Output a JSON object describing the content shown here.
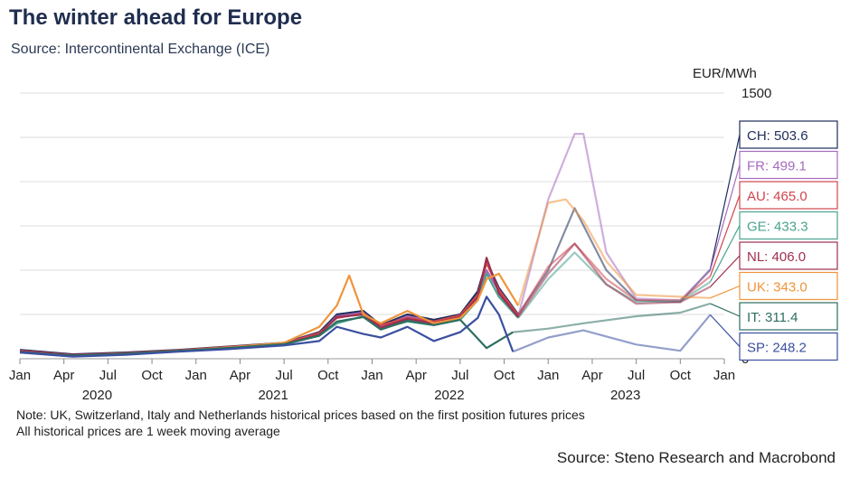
{
  "chart_data": {
    "type": "line",
    "title": "The winter ahead for Europe",
    "subtitle": "Source: Intercontinental Exchange (ICE)",
    "ylabel": "EUR/MWh",
    "ylim": [
      0,
      1500
    ],
    "y_ticks_shown": [
      0,
      1500
    ],
    "x_range": [
      2020.0,
      2024.0
    ],
    "x_month_ticks": [
      "Jan",
      "Apr",
      "Jul",
      "Oct",
      "Jan",
      "Apr",
      "Jul",
      "Oct",
      "Jan",
      "Apr",
      "Jul",
      "Oct",
      "Jan",
      "Apr",
      "Jul",
      "Oct",
      "Jan"
    ],
    "x_year_labels": [
      "2020",
      "2021",
      "2022",
      "2023"
    ],
    "notes": [
      "Note: UK, Switzerland, Italy and Netherlands historical prices based on the first position futures prices",
      "All historical prices are 1 week moving average"
    ],
    "credit": "Source: Steno Research and Macrobond",
    "series": [
      {
        "code": "CH",
        "value_label": "503.6",
        "color": "#1f2d5a",
        "history": [
          [
            2020.0,
            50
          ],
          [
            2020.3,
            25
          ],
          [
            2020.6,
            35
          ],
          [
            2020.9,
            50
          ],
          [
            2021.2,
            70
          ],
          [
            2021.5,
            90
          ],
          [
            2021.7,
            150
          ],
          [
            2021.8,
            250
          ],
          [
            2021.95,
            270
          ],
          [
            2022.05,
            190
          ],
          [
            2022.2,
            250
          ],
          [
            2022.35,
            220
          ],
          [
            2022.5,
            250
          ],
          [
            2022.6,
            380
          ],
          [
            2022.65,
            550
          ],
          [
            2022.72,
            400
          ],
          [
            2022.83,
            250
          ]
        ],
        "forecast": [
          [
            2022.83,
            250
          ],
          [
            2023.0,
            500
          ],
          [
            2023.15,
            850
          ],
          [
            2023.33,
            500
          ],
          [
            2023.5,
            330
          ],
          [
            2023.75,
            320
          ],
          [
            2023.92,
            503.6
          ]
        ]
      },
      {
        "code": "FR",
        "value_label": "499.1",
        "color": "#a56bc0",
        "history": [
          [
            2020.0,
            45
          ],
          [
            2020.3,
            20
          ],
          [
            2020.6,
            30
          ],
          [
            2020.9,
            45
          ],
          [
            2021.2,
            65
          ],
          [
            2021.5,
            85
          ],
          [
            2021.7,
            140
          ],
          [
            2021.8,
            240
          ],
          [
            2021.95,
            260
          ],
          [
            2022.05,
            180
          ],
          [
            2022.2,
            240
          ],
          [
            2022.35,
            210
          ],
          [
            2022.5,
            240
          ],
          [
            2022.6,
            350
          ],
          [
            2022.65,
            500
          ],
          [
            2022.72,
            380
          ],
          [
            2022.83,
            240
          ]
        ],
        "forecast": [
          [
            2022.83,
            240
          ],
          [
            2023.0,
            900
          ],
          [
            2023.15,
            1270
          ],
          [
            2023.2,
            1270
          ],
          [
            2023.33,
            600
          ],
          [
            2023.5,
            340
          ],
          [
            2023.75,
            330
          ],
          [
            2023.92,
            499.1
          ]
        ]
      },
      {
        "code": "AU",
        "value_label": "465.0",
        "color": "#d0464e",
        "history": [
          [
            2020.0,
            45
          ],
          [
            2020.3,
            22
          ],
          [
            2020.6,
            32
          ],
          [
            2020.9,
            48
          ],
          [
            2021.2,
            68
          ],
          [
            2021.5,
            88
          ],
          [
            2021.7,
            145
          ],
          [
            2021.8,
            230
          ],
          [
            2021.95,
            255
          ],
          [
            2022.05,
            190
          ],
          [
            2022.2,
            230
          ],
          [
            2022.35,
            210
          ],
          [
            2022.5,
            245
          ],
          [
            2022.6,
            360
          ],
          [
            2022.65,
            540
          ],
          [
            2022.72,
            390
          ],
          [
            2022.83,
            245
          ]
        ],
        "forecast": [
          [
            2022.83,
            245
          ],
          [
            2023.0,
            520
          ],
          [
            2023.15,
            650
          ],
          [
            2023.33,
            450
          ],
          [
            2023.5,
            330
          ],
          [
            2023.75,
            330
          ],
          [
            2023.92,
            465
          ]
        ]
      },
      {
        "code": "GE",
        "value_label": "433.3",
        "color": "#4aa38e",
        "history": [
          [
            2020.0,
            40
          ],
          [
            2020.3,
            20
          ],
          [
            2020.6,
            28
          ],
          [
            2020.9,
            45
          ],
          [
            2021.2,
            60
          ],
          [
            2021.5,
            80
          ],
          [
            2021.7,
            130
          ],
          [
            2021.8,
            200
          ],
          [
            2021.95,
            240
          ],
          [
            2022.05,
            170
          ],
          [
            2022.2,
            210
          ],
          [
            2022.35,
            190
          ],
          [
            2022.5,
            220
          ],
          [
            2022.6,
            330
          ],
          [
            2022.65,
            480
          ],
          [
            2022.72,
            350
          ],
          [
            2022.83,
            230
          ]
        ],
        "forecast": [
          [
            2022.83,
            230
          ],
          [
            2023.0,
            450
          ],
          [
            2023.15,
            600
          ],
          [
            2023.33,
            420
          ],
          [
            2023.5,
            320
          ],
          [
            2023.75,
            325
          ],
          [
            2023.92,
            433.3
          ]
        ]
      },
      {
        "code": "NL",
        "value_label": "406.0",
        "color": "#9c2f4f",
        "history": [
          [
            2020.0,
            42
          ],
          [
            2020.3,
            21
          ],
          [
            2020.6,
            30
          ],
          [
            2020.9,
            46
          ],
          [
            2021.2,
            62
          ],
          [
            2021.5,
            82
          ],
          [
            2021.7,
            135
          ],
          [
            2021.8,
            235
          ],
          [
            2021.95,
            250
          ],
          [
            2022.05,
            175
          ],
          [
            2022.2,
            225
          ],
          [
            2022.35,
            200
          ],
          [
            2022.5,
            235
          ],
          [
            2022.6,
            345
          ],
          [
            2022.65,
            570
          ],
          [
            2022.72,
            370
          ],
          [
            2022.83,
            235
          ]
        ],
        "forecast": [
          [
            2022.83,
            235
          ],
          [
            2023.0,
            480
          ],
          [
            2023.15,
            650
          ],
          [
            2023.33,
            420
          ],
          [
            2023.5,
            310
          ],
          [
            2023.75,
            320
          ],
          [
            2023.92,
            406
          ]
        ]
      },
      {
        "code": "UK",
        "value_label": "343.0",
        "color": "#f0943a",
        "history": [
          [
            2020.0,
            35
          ],
          [
            2020.3,
            15
          ],
          [
            2020.6,
            25
          ],
          [
            2020.9,
            45
          ],
          [
            2021.2,
            65
          ],
          [
            2021.5,
            90
          ],
          [
            2021.7,
            180
          ],
          [
            2021.8,
            300
          ],
          [
            2021.87,
            470
          ],
          [
            2021.95,
            250
          ],
          [
            2022.05,
            200
          ],
          [
            2022.2,
            270
          ],
          [
            2022.35,
            200
          ],
          [
            2022.5,
            230
          ],
          [
            2022.6,
            330
          ],
          [
            2022.65,
            450
          ],
          [
            2022.72,
            480
          ],
          [
            2022.83,
            300
          ]
        ],
        "forecast": [
          [
            2022.83,
            300
          ],
          [
            2023.0,
            880
          ],
          [
            2023.1,
            900
          ],
          [
            2023.2,
            780
          ],
          [
            2023.33,
            550
          ],
          [
            2023.5,
            360
          ],
          [
            2023.75,
            350
          ],
          [
            2023.92,
            343
          ]
        ]
      },
      {
        "code": "IT",
        "value_label": "311.4",
        "color": "#2e6e60",
        "history": [
          [
            2020.0,
            38
          ],
          [
            2020.3,
            18
          ],
          [
            2020.6,
            28
          ],
          [
            2020.9,
            45
          ],
          [
            2021.2,
            62
          ],
          [
            2021.5,
            82
          ],
          [
            2021.7,
            130
          ],
          [
            2021.8,
            210
          ],
          [
            2021.95,
            235
          ],
          [
            2022.05,
            165
          ],
          [
            2022.2,
            215
          ],
          [
            2022.35,
            190
          ],
          [
            2022.5,
            220
          ],
          [
            2022.65,
            60
          ],
          [
            2022.8,
            150
          ]
        ],
        "forecast": [
          [
            2022.8,
            150
          ],
          [
            2023.0,
            170
          ],
          [
            2023.2,
            200
          ],
          [
            2023.5,
            240
          ],
          [
            2023.75,
            260
          ],
          [
            2023.92,
            311.4
          ]
        ]
      },
      {
        "code": "SP",
        "value_label": "248.2",
        "color": "#3b4fa0",
        "history": [
          [
            2020.0,
            35
          ],
          [
            2020.3,
            12
          ],
          [
            2020.6,
            22
          ],
          [
            2020.9,
            40
          ],
          [
            2021.2,
            55
          ],
          [
            2021.5,
            75
          ],
          [
            2021.7,
            100
          ],
          [
            2021.8,
            180
          ],
          [
            2021.95,
            140
          ],
          [
            2022.05,
            120
          ],
          [
            2022.2,
            180
          ],
          [
            2022.35,
            100
          ],
          [
            2022.5,
            150
          ],
          [
            2022.6,
            230
          ],
          [
            2022.65,
            350
          ],
          [
            2022.72,
            250
          ],
          [
            2022.8,
            40
          ]
        ],
        "forecast": [
          [
            2022.8,
            40
          ],
          [
            2023.0,
            120
          ],
          [
            2023.2,
            160
          ],
          [
            2023.5,
            80
          ],
          [
            2023.75,
            45
          ],
          [
            2023.92,
            248.2
          ]
        ]
      }
    ]
  }
}
